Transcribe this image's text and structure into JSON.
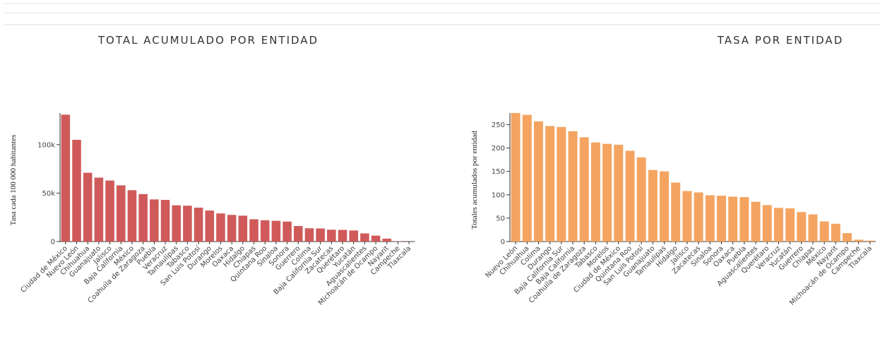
{
  "chart_data": [
    {
      "type": "bar",
      "title": "TOTAL ACUMULADO POR ENTIDAD",
      "y_label": "Tasa cada 100 000 habitantes",
      "color": "#d05a5a",
      "categories": [
        "Ciudad de México",
        "Nuevo León",
        "Chihuahua",
        "Guanajuato",
        "Jalisco",
        "Baja California",
        "México",
        "Coahuila de Zaragoza",
        "Puebla",
        "Veracruz",
        "Tamaulipas",
        "Tabasco",
        "San Luis Potosí",
        "Durango",
        "Morelos",
        "Oaxaca",
        "Hidalgo",
        "Chiapas",
        "Quintana Roo",
        "Sinaloa",
        "Sonora",
        "Guerrero",
        "Colima",
        "Baja California Sur",
        "Zacatecas",
        "Querétaro",
        "Yucatán",
        "Aguascalientes",
        "Michoacán de Ocampo",
        "Nayarit",
        "Campeche",
        "Tlaxcala"
      ],
      "values": [
        131000,
        105000,
        71000,
        66000,
        63000,
        58000,
        53000,
        49000,
        43500,
        43000,
        37400,
        37000,
        35000,
        32000,
        29000,
        27500,
        26700,
        23000,
        22000,
        21400,
        20600,
        16000,
        13700,
        13500,
        12200,
        12000,
        11400,
        8400,
        6100,
        3000,
        300,
        100
      ],
      "ylim": [
        0,
        140000
      ],
      "yticks": [
        0,
        {
          "value": 50000,
          "label": "50k"
        },
        {
          "value": 100000,
          "label": "100k"
        }
      ]
    },
    {
      "type": "bar",
      "title": "TASA POR ENTIDAD",
      "y_label": "Totales acumulados por entidad",
      "color": "#f4a460",
      "categories": [
        "Nuevo León",
        "Chihuahua",
        "Colima",
        "Durango",
        "Baja California Sur",
        "Baja California",
        "Coahuila de Zaragoza",
        "Tabasco",
        "Morelos",
        "Ciudad de México",
        "Quintana Roo",
        "San Luis Potosí",
        "Guanajuato",
        "Tamaulipas",
        "Hidalgo",
        "Jalisco",
        "Zacatecas",
        "Sinaloa",
        "Sonora",
        "Oaxaca",
        "Puebla",
        "Aguascalientes",
        "Querétaro",
        "Veracruz",
        "Yucatán",
        "Guerrero",
        "Chiapas",
        "México",
        "Nayarit",
        "Michoacán de Ocampo",
        "Campeche",
        "Tlaxcala"
      ],
      "values": [
        275,
        271,
        257,
        247,
        245,
        236,
        223,
        212,
        209,
        207,
        194,
        180,
        153,
        150,
        126,
        108,
        105,
        99,
        98,
        96,
        95,
        85,
        78,
        72,
        71,
        63,
        58,
        43,
        38,
        18,
        4,
        2
      ],
      "ylim": [
        0,
        290
      ],
      "yticks": [
        0,
        50,
        100,
        150,
        200,
        250
      ]
    }
  ]
}
